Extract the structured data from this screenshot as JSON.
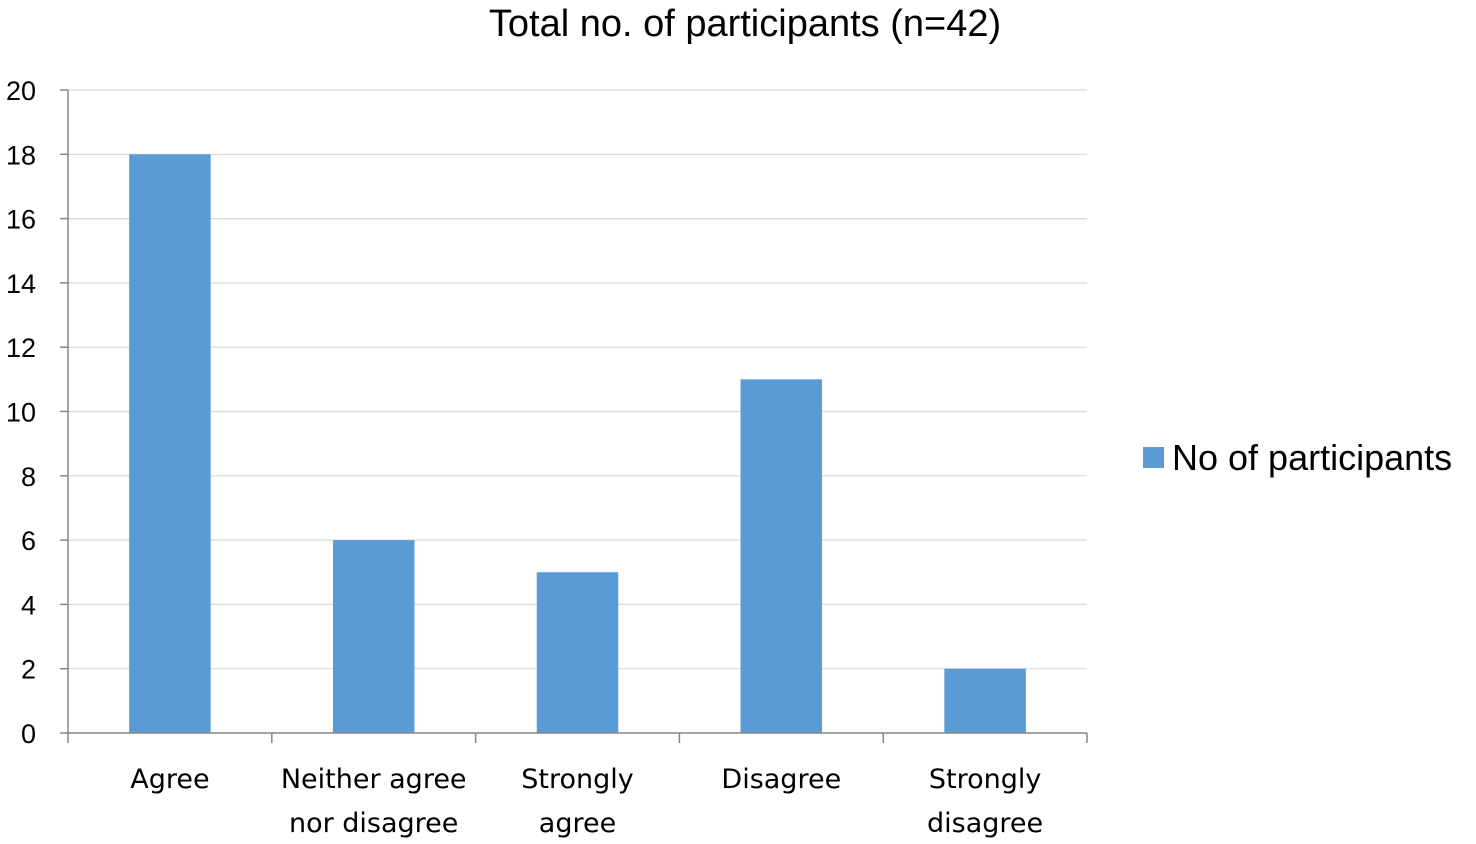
{
  "chart_data": {
    "type": "bar",
    "title": "Total no. of participants (n=42)",
    "categories": [
      [
        "Agree"
      ],
      [
        "Neither agree",
        "nor disagree"
      ],
      [
        "Strongly",
        "agree"
      ],
      [
        "Disagree"
      ],
      [
        "Strongly",
        "disagree"
      ]
    ],
    "series": [
      {
        "name": "No of participants",
        "values": [
          18,
          6,
          5,
          11,
          2
        ],
        "color": "#5b9bd5"
      }
    ],
    "xlabel": "",
    "ylabel": "",
    "ylim": [
      0,
      20
    ],
    "yticks": [
      "0",
      "2",
      "4",
      "6",
      "8",
      "10",
      "12",
      "14",
      "16",
      "18",
      "20"
    ],
    "grid": true,
    "legend_position": "right"
  }
}
